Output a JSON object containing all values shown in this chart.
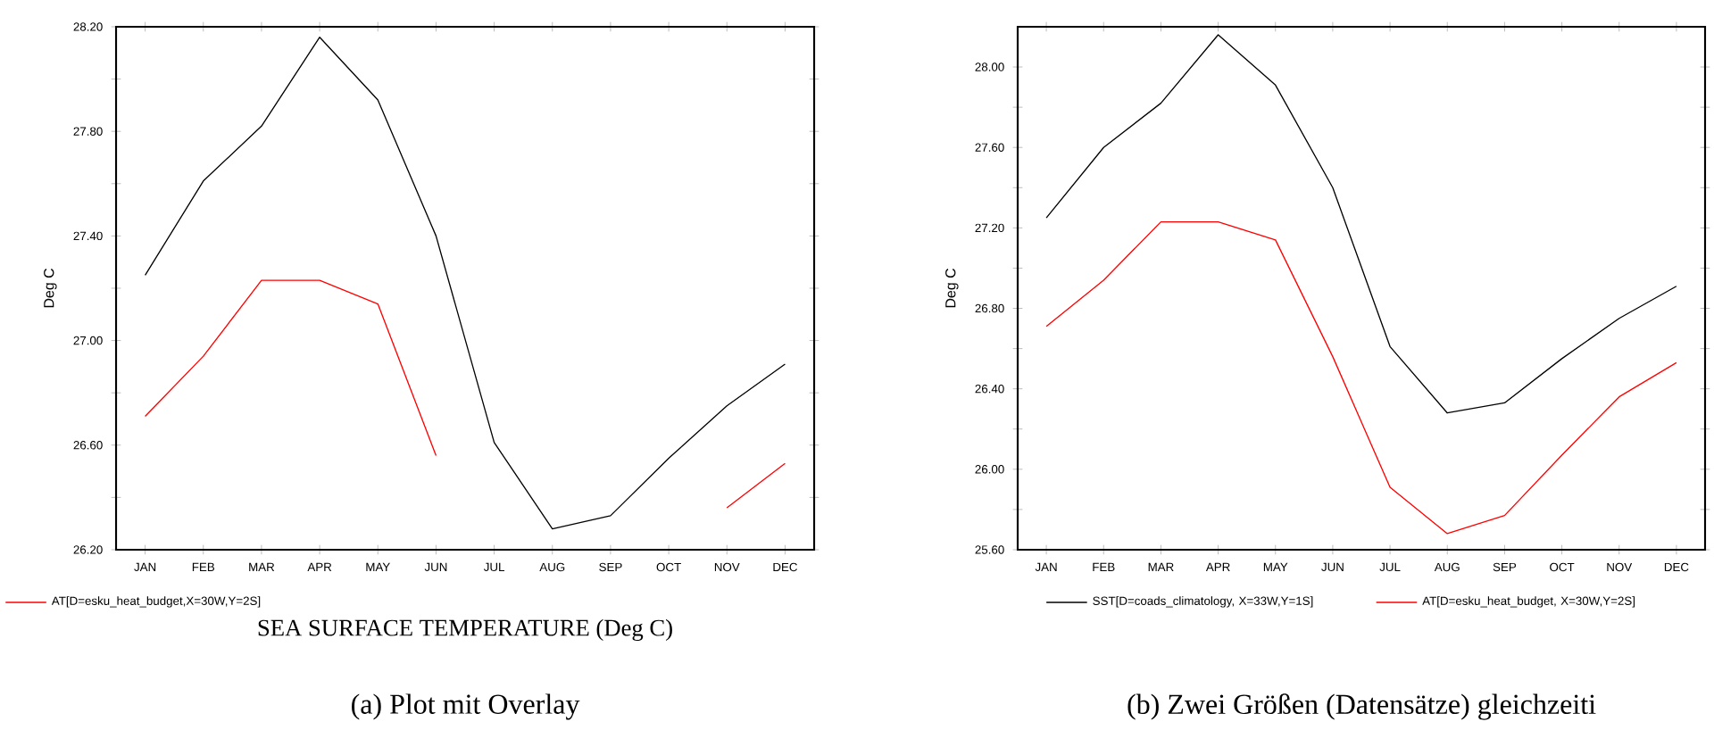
{
  "chart_data": [
    {
      "type": "line",
      "title": "SEA SURFACE TEMPERATURE (Deg C)",
      "ylabel": "Deg C",
      "categories": [
        "JAN",
        "FEB",
        "MAR",
        "APR",
        "MAY",
        "JUN",
        "JUL",
        "AUG",
        "SEP",
        "OCT",
        "NOV",
        "DEC"
      ],
      "series": [
        {
          "color": "#000000",
          "values": [
            27.25,
            27.61,
            27.82,
            28.16,
            27.92,
            27.4,
            26.61,
            26.28,
            26.33,
            26.55,
            26.75,
            26.91
          ]
        },
        {
          "name": "AT[D=esku_heat_budget,X=30W,Y=2S]",
          "color": "#ff0000",
          "values": [
            26.71,
            26.94,
            27.23,
            27.23,
            27.14,
            26.56,
            null,
            null,
            null,
            null,
            26.36,
            26.53
          ]
        }
      ],
      "ylim": [
        26.2,
        28.2
      ],
      "yticks": [
        {
          "value": 26.2,
          "label": "26.20"
        },
        {
          "value": 26.4,
          "label": null
        },
        {
          "value": 26.6,
          "label": "26.60"
        },
        {
          "value": 26.8,
          "label": null
        },
        {
          "value": 27.0,
          "label": "27.00"
        },
        {
          "value": 27.2,
          "label": null
        },
        {
          "value": 27.4,
          "label": "27.40"
        },
        {
          "value": 27.6,
          "label": null
        },
        {
          "value": 27.8,
          "label": "27.80"
        },
        {
          "value": 28.0,
          "label": null
        },
        {
          "value": 28.2,
          "label": "28.20"
        }
      ],
      "legend": "bottom left",
      "line_style": "solid",
      "marker": "none",
      "annotations": [
        "(a) Plot mit Overlay"
      ]
    },
    {
      "type": "line",
      "ylabel": "Deg C",
      "categories": [
        "JAN",
        "FEB",
        "MAR",
        "APR",
        "MAY",
        "JUN",
        "JUL",
        "AUG",
        "SEP",
        "OCT",
        "NOV",
        "DEC"
      ],
      "series": [
        {
          "name": "SST[D=coads_climatology, X=33W,Y=1S]",
          "color": "#000000",
          "values": [
            27.25,
            27.6,
            27.82,
            28.16,
            27.91,
            27.4,
            26.61,
            26.28,
            26.33,
            26.55,
            26.75,
            26.91
          ]
        },
        {
          "name": "AT[D=esku_heat_budget, X=30W,Y=2S]",
          "color": "#ff0000",
          "values": [
            26.71,
            26.94,
            27.23,
            27.23,
            27.14,
            26.56,
            25.91,
            25.68,
            25.77,
            26.07,
            26.36,
            26.53
          ]
        }
      ],
      "ylim": [
        25.6,
        28.2
      ],
      "yticks": [
        {
          "value": 25.6,
          "label": "25.60"
        },
        {
          "value": 25.8,
          "label": null
        },
        {
          "value": 26.0,
          "label": "26.00"
        },
        {
          "value": 26.2,
          "label": null
        },
        {
          "value": 26.4,
          "label": "26.40"
        },
        {
          "value": 26.6,
          "label": null
        },
        {
          "value": 26.8,
          "label": "26.80"
        },
        {
          "value": 27.0,
          "label": null
        },
        {
          "value": 27.2,
          "label": "27.20"
        },
        {
          "value": 27.4,
          "label": null
        },
        {
          "value": 27.6,
          "label": "27.60"
        },
        {
          "value": 27.8,
          "label": null
        },
        {
          "value": 28.0,
          "label": "28.00"
        }
      ],
      "legend": "bottom",
      "line_style": "solid",
      "marker": "none",
      "annotations": [
        "(b) Zwei Größen (Datensätze) gleichzeiti"
      ]
    }
  ]
}
